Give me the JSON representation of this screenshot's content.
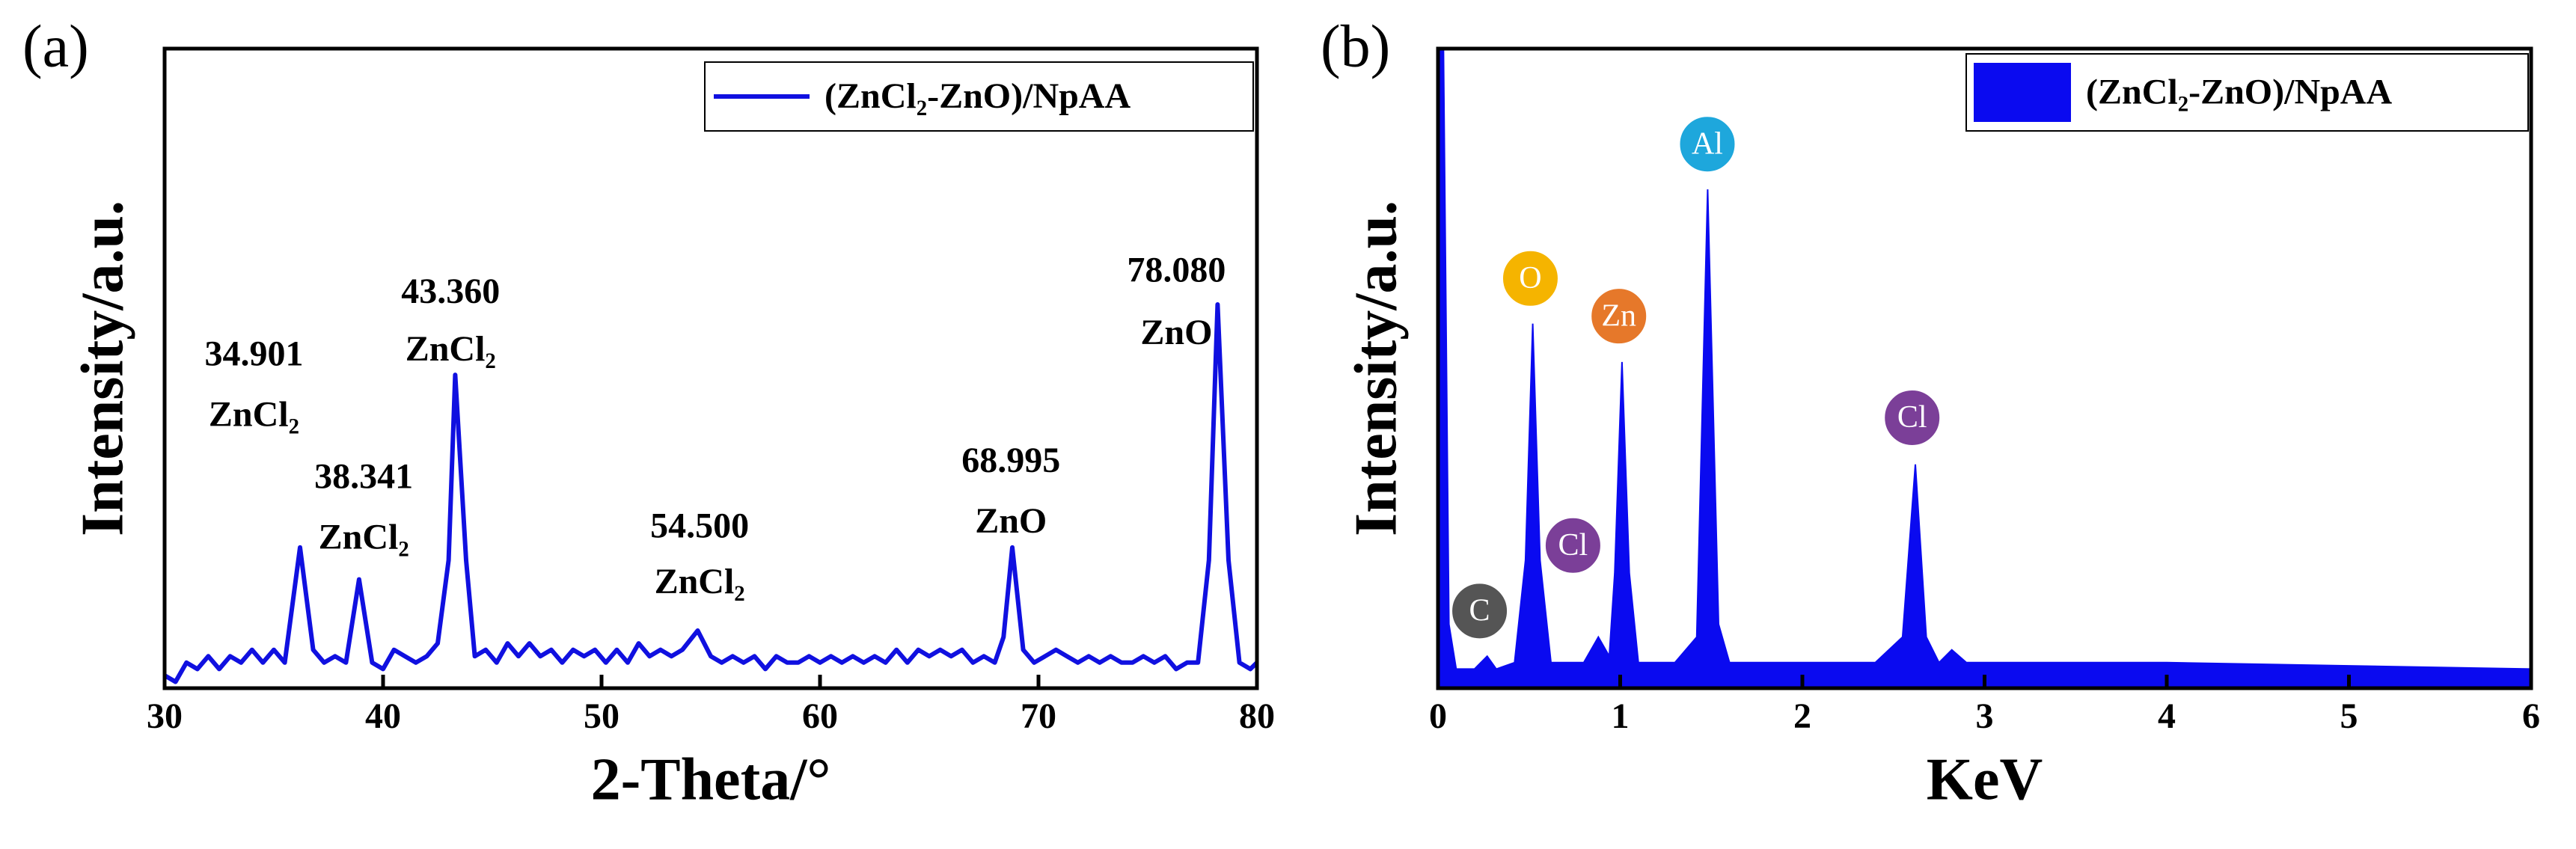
{
  "chart_data": [
    {
      "type": "line",
      "panel": "(a)",
      "x_label": "2-Theta/°",
      "y_label": "Intensity/a.u.",
      "xlim": [
        30,
        80
      ],
      "xticks": [
        30,
        40,
        50,
        60,
        70,
        80
      ],
      "ylim": [
        0,
        100
      ],
      "x": [
        30,
        30.5,
        31,
        31.5,
        32,
        32.5,
        33,
        33.5,
        34,
        34.5,
        35,
        35.5,
        36.2,
        36.8,
        37.3,
        37.8,
        38.3,
        38.9,
        39.5,
        40,
        40.5,
        41,
        41.5,
        42,
        42.5,
        43,
        43.3,
        43.8,
        44.2,
        44.7,
        45.2,
        45.7,
        46.2,
        46.7,
        47.2,
        47.7,
        48.2,
        48.7,
        49.2,
        49.7,
        50.2,
        50.7,
        51.2,
        51.7,
        52.2,
        52.7,
        53.2,
        53.7,
        54.4,
        55,
        55.5,
        56,
        56.5,
        57,
        57.5,
        58,
        58.5,
        59,
        59.5,
        60,
        60.5,
        61,
        61.5,
        62,
        62.5,
        63,
        63.5,
        64,
        64.5,
        65,
        65.5,
        66,
        66.5,
        67,
        67.5,
        68,
        68.4,
        68.8,
        69.3,
        69.8,
        70.3,
        70.8,
        71.3,
        71.8,
        72.3,
        72.8,
        73.3,
        73.8,
        74.3,
        74.8,
        75.3,
        75.8,
        76.3,
        76.8,
        77.3,
        77.8,
        78.2,
        78.7,
        79.2,
        79.7,
        80
      ],
      "series": [
        {
          "name": "(ZnCl₂-ZnO)/NpAA",
          "color": "#1010e0",
          "values": [
            2,
            1,
            4,
            3,
            5,
            3,
            5,
            4,
            6,
            4,
            6,
            4,
            22,
            6,
            4,
            5,
            4,
            17,
            4,
            3,
            6,
            5,
            4,
            5,
            7,
            20,
            49,
            20,
            5,
            6,
            4,
            7,
            5,
            7,
            5,
            6,
            4,
            6,
            5,
            6,
            4,
            6,
            4,
            7,
            5,
            6,
            5,
            6,
            9,
            5,
            4,
            5,
            4,
            5,
            3,
            5,
            4,
            4,
            5,
            4,
            5,
            4,
            5,
            4,
            5,
            4,
            6,
            4,
            6,
            5,
            6,
            5,
            6,
            4,
            5,
            4,
            8,
            22,
            6,
            4,
            5,
            6,
            5,
            4,
            5,
            4,
            5,
            4,
            4,
            5,
            4,
            5,
            3,
            4,
            4,
            20,
            60,
            20,
            4,
            3,
            4
          ]
        }
      ],
      "annotations": [
        {
          "value": "34.901",
          "compound": "ZnCl₂"
        },
        {
          "value": "38.341",
          "compound": "ZnCl₂"
        },
        {
          "value": "43.360",
          "compound": "ZnCl₂"
        },
        {
          "value": "54.500",
          "compound": "ZnCl₂"
        },
        {
          "value": "68.995",
          "compound": "ZnO"
        },
        {
          "value": "78.080",
          "compound": "ZnO"
        }
      ]
    },
    {
      "type": "area",
      "panel": "(b)",
      "x_label": "KeV",
      "y_label": "Intensity/a.u.",
      "xlim": [
        0,
        6
      ],
      "xticks": [
        0,
        1,
        2,
        3,
        4,
        5,
        6
      ],
      "ylim": [
        0,
        100
      ],
      "x": [
        0,
        0.03,
        0.06,
        0.1,
        0.2,
        0.27,
        0.32,
        0.42,
        0.48,
        0.52,
        0.56,
        0.62,
        0.8,
        0.88,
        0.94,
        0.97,
        1.01,
        1.05,
        1.1,
        1.3,
        1.42,
        1.48,
        1.54,
        1.6,
        2.0,
        2.4,
        2.55,
        2.62,
        2.68,
        2.75,
        2.82,
        2.9,
        3.5,
        4,
        5,
        6
      ],
      "series": [
        {
          "name": "(ZnCl₂-ZnO)/NpAA",
          "color": "#0a0af0",
          "values": [
            100,
            100,
            10,
            3,
            3,
            5,
            3,
            4,
            20,
            57,
            20,
            4,
            4,
            8,
            5,
            18,
            51,
            18,
            4,
            4,
            8,
            78,
            10,
            4,
            4,
            4,
            8,
            35,
            8,
            4,
            6,
            4,
            4,
            4,
            3.5,
            3
          ]
        }
      ],
      "annotations": [
        {
          "label": "C",
          "color": "#555555"
        },
        {
          "label": "O",
          "color": "#f5b400"
        },
        {
          "label": "Cl",
          "color": "#7b3f98"
        },
        {
          "label": "Zn",
          "color": "#e6782a"
        },
        {
          "label": "Al",
          "color": "#1ea7dc"
        },
        {
          "label": "Cl",
          "color": "#7b3f98"
        }
      ]
    }
  ]
}
